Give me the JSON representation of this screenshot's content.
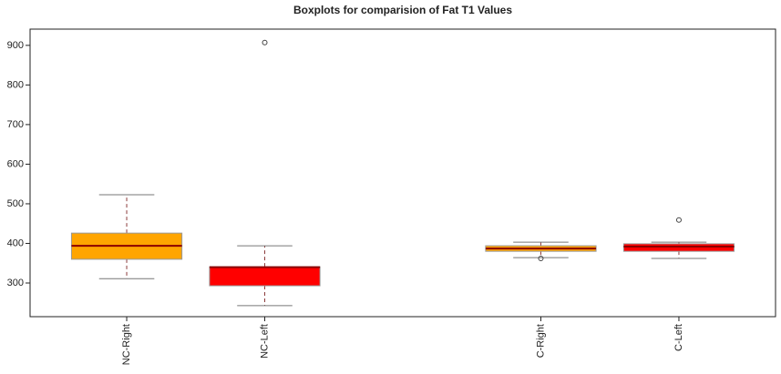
{
  "chart_data": {
    "type": "boxplot",
    "title": "Boxplots for comparision of Fat T1 Values",
    "categories": [
      "NC-Right",
      "NC-Left",
      null,
      "C-Right",
      "C-Left"
    ],
    "boxes": [
      {
        "low": 311,
        "q1": 360,
        "median": 394,
        "q3": 426,
        "high": 523,
        "outliers": [],
        "color": "#ffa500"
      },
      {
        "low": 243,
        "q1": 293,
        "median": 340,
        "q3": 341,
        "high": 394,
        "outliers": [
          907
        ],
        "color": "#ff0000"
      },
      null,
      {
        "low": 364,
        "q1": 380,
        "median": 387,
        "q3": 394,
        "high": 403,
        "outliers": [
          362
        ],
        "color": "#ffa500"
      },
      {
        "low": 362,
        "q1": 380,
        "median": 392,
        "q3": 399,
        "high": 403,
        "outliers": [
          459
        ],
        "color": "#ff0000"
      }
    ],
    "ylim": [
      215,
      941
    ],
    "yticks": [
      300,
      400,
      500,
      600,
      700,
      800,
      900
    ]
  }
}
